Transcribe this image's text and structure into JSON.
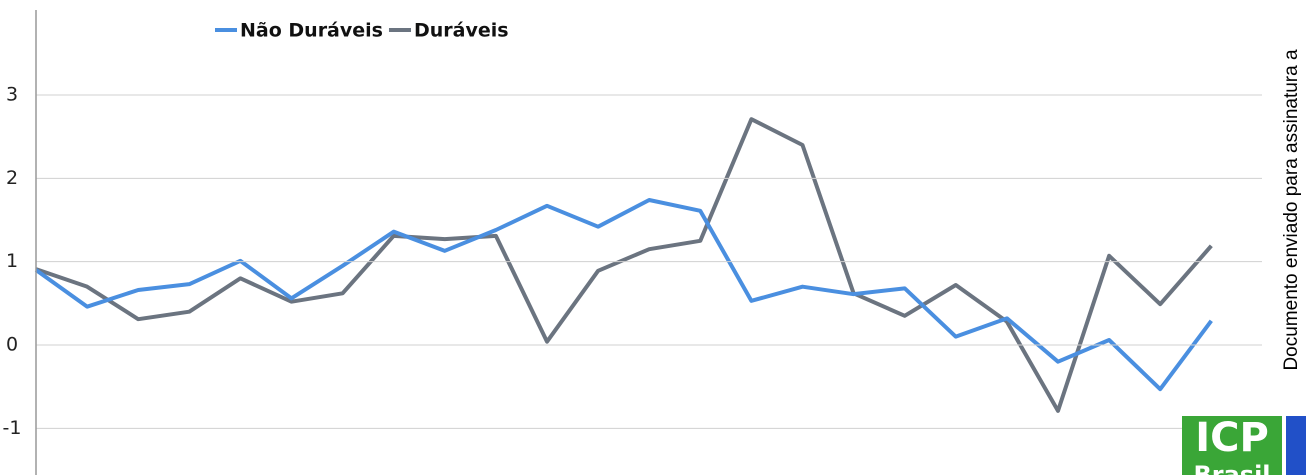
{
  "chart_data": {
    "type": "line",
    "categories": [
      null,
      null,
      null,
      null,
      null,
      null,
      null,
      null,
      null,
      null,
      null,
      null,
      null,
      null,
      null,
      null,
      null,
      null,
      null,
      null,
      null,
      null,
      null,
      null
    ],
    "series": [
      {
        "name": "Não Duráveis",
        "color": "#4a8fe0",
        "values": [
          0.9,
          0.46,
          0.66,
          0.73,
          1.01,
          0.56,
          0.95,
          1.36,
          1.13,
          1.38,
          1.67,
          1.42,
          1.74,
          1.61,
          0.53,
          0.7,
          0.61,
          0.68,
          0.1,
          0.32,
          -0.2,
          0.06,
          -0.53,
          0.29
        ]
      },
      {
        "name": "Duráveis",
        "color": "#6b7480",
        "values": [
          0.91,
          0.7,
          0.31,
          0.4,
          0.8,
          0.52,
          0.62,
          1.31,
          1.27,
          1.31,
          0.04,
          0.89,
          1.15,
          1.25,
          2.71,
          2.4,
          0.62,
          0.35,
          0.72,
          0.28,
          -0.79,
          1.07,
          0.49,
          1.19
        ]
      }
    ],
    "ylim": [
      -1.56,
      4.02
    ],
    "yticks": [
      -1,
      0,
      1,
      2,
      3
    ],
    "grid": true,
    "side_note": "Documento enviado para assinatura a",
    "logo": {
      "top": "ICP",
      "bottom": "Brasil"
    }
  }
}
